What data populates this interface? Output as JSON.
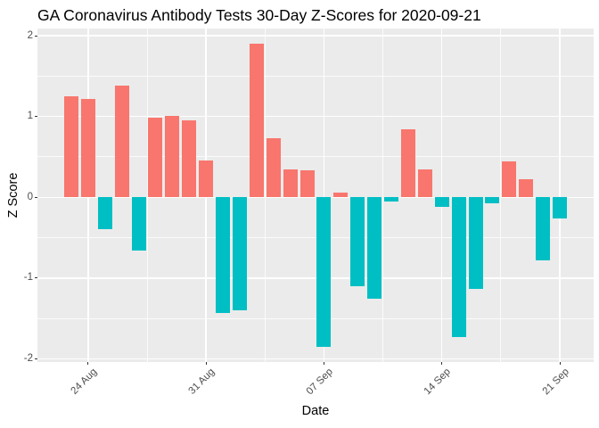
{
  "chart_data": {
    "type": "bar",
    "title": "GA Coronavirus Antibody Tests 30-Day Z-Scores for 2020-09-21",
    "xlabel": "Date",
    "ylabel": "Z Score",
    "x": [
      "2020-08-23",
      "2020-08-24",
      "2020-08-25",
      "2020-08-26",
      "2020-08-27",
      "2020-08-28",
      "2020-08-29",
      "2020-08-30",
      "2020-08-31",
      "2020-09-01",
      "2020-09-02",
      "2020-09-03",
      "2020-09-04",
      "2020-09-05",
      "2020-09-06",
      "2020-09-07",
      "2020-09-08",
      "2020-09-09",
      "2020-09-10",
      "2020-09-11",
      "2020-09-12",
      "2020-09-13",
      "2020-09-14",
      "2020-09-15",
      "2020-09-16",
      "2020-09-17",
      "2020-09-18",
      "2020-09-19",
      "2020-09-20",
      "2020-09-21"
    ],
    "values": [
      1.25,
      1.22,
      -0.4,
      1.38,
      -0.66,
      0.99,
      1.01,
      0.95,
      0.46,
      -1.43,
      -1.4,
      1.9,
      0.73,
      0.35,
      0.33,
      -1.85,
      0.06,
      -1.1,
      -1.26,
      -0.05,
      0.84,
      0.34,
      -0.12,
      -1.73,
      -1.14,
      -0.08,
      0.44,
      0.22,
      -0.78,
      -0.26
    ],
    "xticks": [
      {
        "index": 1,
        "label": "24 Aug"
      },
      {
        "index": 8,
        "label": "31 Aug"
      },
      {
        "index": 15,
        "label": "07 Sep"
      },
      {
        "index": 22,
        "label": "14 Sep"
      },
      {
        "index": 29,
        "label": "21 Sep"
      }
    ],
    "yticks": [
      -2,
      -1,
      0,
      1,
      2
    ],
    "ytick_labels": [
      "-2",
      "-1",
      "0",
      "1",
      "2"
    ],
    "yticks_minor": [
      -1.5,
      -0.5,
      0.5,
      1.5
    ],
    "ylim": [
      -2.04,
      2.09
    ],
    "grid": true,
    "legend": false,
    "colors": {
      "positive_bar": "#F8766D",
      "negative_bar": "#00BFC4",
      "panel_background": "#EBEBEB",
      "gridline": "#FFFFFF",
      "tick_text": "#4D4D4D",
      "tick_mark": "#333333",
      "title_text": "#000000"
    }
  }
}
